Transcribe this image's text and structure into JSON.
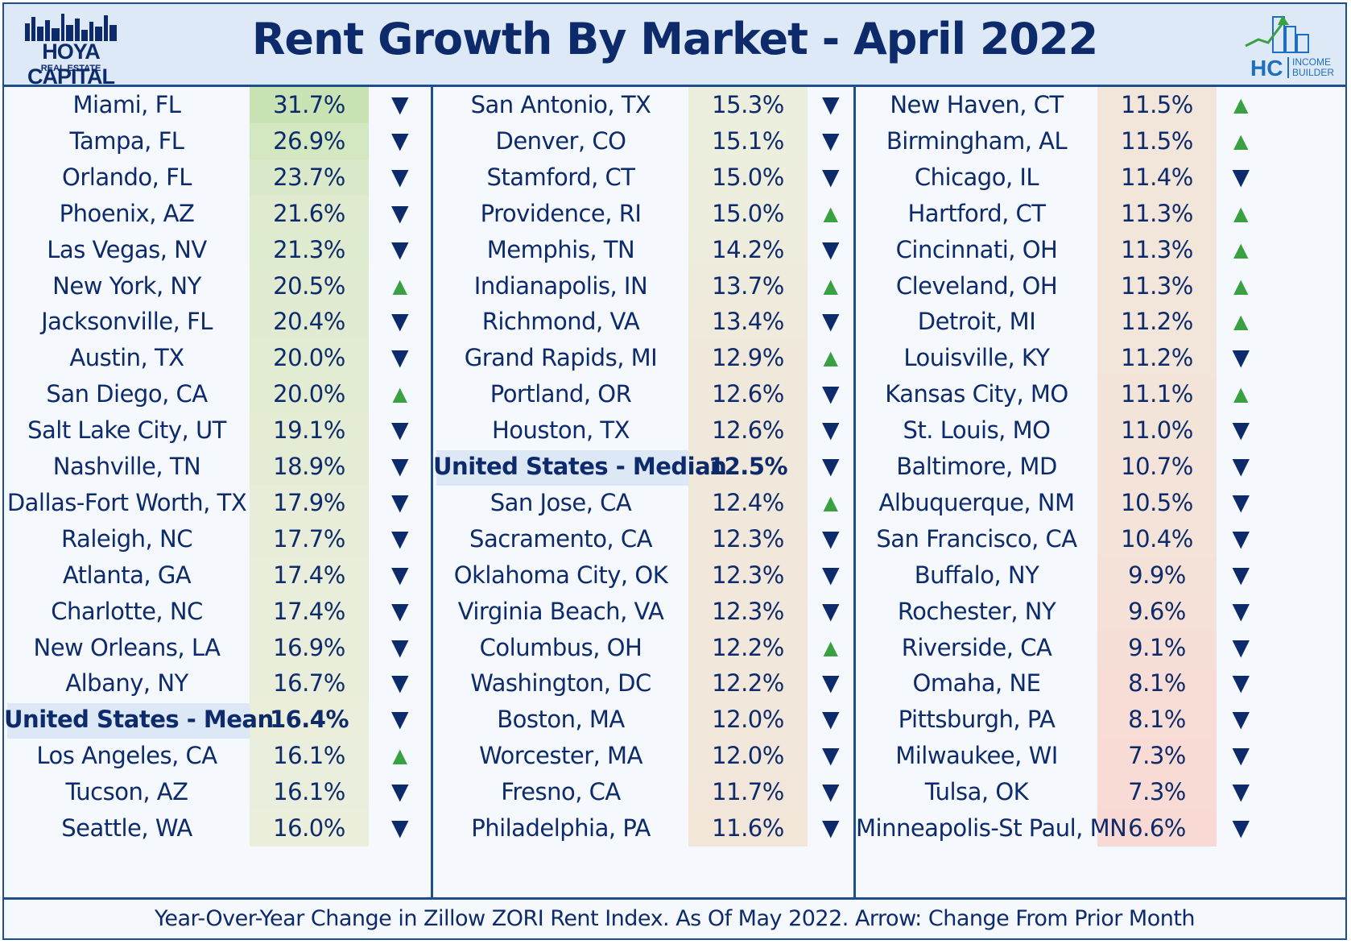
{
  "header": {
    "title": "Rent Growth By Market - April 2022",
    "logo_left_line1": "HOYA CAPITAL",
    "logo_left_line2": "REAL ESTATE",
    "logo_right_main": "HC",
    "logo_right_sub1": "INCOME",
    "logo_right_sub2": "BUILDER"
  },
  "footer": {
    "note": "Year-Over-Year Change in Zillow ZORI Rent Index. As Of May 2022. Arrow: Change From Prior Month"
  },
  "colors": {
    "border": "#1e4f8c",
    "text": "#0d2a6b",
    "arrow_up": "#3aa142",
    "arrow_down": "#0d2a6b",
    "highlight_bg": "#dce8f5",
    "high_value_bg": "#c9e3b4",
    "low_value_bg": "#f9d9d3"
  },
  "chart_data": {
    "type": "table",
    "title": "Rent Growth By Market - April 2022",
    "columns": [
      [
        {
          "city": "Miami, FL",
          "pct": "31.7%",
          "arrow": "down"
        },
        {
          "city": "Tampa, FL",
          "pct": "26.9%",
          "arrow": "down"
        },
        {
          "city": "Orlando, FL",
          "pct": "23.7%",
          "arrow": "down"
        },
        {
          "city": "Phoenix, AZ",
          "pct": "21.6%",
          "arrow": "down"
        },
        {
          "city": "Las Vegas, NV",
          "pct": "21.3%",
          "arrow": "down"
        },
        {
          "city": "New York, NY",
          "pct": "20.5%",
          "arrow": "up"
        },
        {
          "city": "Jacksonville, FL",
          "pct": "20.4%",
          "arrow": "down"
        },
        {
          "city": "Austin, TX",
          "pct": "20.0%",
          "arrow": "down"
        },
        {
          "city": "San Diego, CA",
          "pct": "20.0%",
          "arrow": "up"
        },
        {
          "city": "Salt Lake City, UT",
          "pct": "19.1%",
          "arrow": "down"
        },
        {
          "city": "Nashville, TN",
          "pct": "18.9%",
          "arrow": "down"
        },
        {
          "city": "Dallas-Fort Worth, TX",
          "pct": "17.9%",
          "arrow": "down"
        },
        {
          "city": "Raleigh, NC",
          "pct": "17.7%",
          "arrow": "down"
        },
        {
          "city": "Atlanta, GA",
          "pct": "17.4%",
          "arrow": "down"
        },
        {
          "city": "Charlotte, NC",
          "pct": "17.4%",
          "arrow": "down"
        },
        {
          "city": "New Orleans, LA",
          "pct": "16.9%",
          "arrow": "down"
        },
        {
          "city": "Albany, NY",
          "pct": "16.7%",
          "arrow": "down"
        },
        {
          "city": "United States - Mean",
          "pct": "16.4%",
          "arrow": "down",
          "highlight": true
        },
        {
          "city": "Los Angeles, CA",
          "pct": "16.1%",
          "arrow": "up"
        },
        {
          "city": "Tucson, AZ",
          "pct": "16.1%",
          "arrow": "down"
        },
        {
          "city": "Seattle, WA",
          "pct": "16.0%",
          "arrow": "down"
        }
      ],
      [
        {
          "city": "San Antonio, TX",
          "pct": "15.3%",
          "arrow": "down"
        },
        {
          "city": "Denver, CO",
          "pct": "15.1%",
          "arrow": "down"
        },
        {
          "city": "Stamford, CT",
          "pct": "15.0%",
          "arrow": "down"
        },
        {
          "city": "Providence, RI",
          "pct": "15.0%",
          "arrow": "up"
        },
        {
          "city": "Memphis, TN",
          "pct": "14.2%",
          "arrow": "down"
        },
        {
          "city": "Indianapolis, IN",
          "pct": "13.7%",
          "arrow": "up"
        },
        {
          "city": "Richmond, VA",
          "pct": "13.4%",
          "arrow": "down"
        },
        {
          "city": "Grand Rapids, MI",
          "pct": "12.9%",
          "arrow": "up"
        },
        {
          "city": "Portland, OR",
          "pct": "12.6%",
          "arrow": "down"
        },
        {
          "city": "Houston, TX",
          "pct": "12.6%",
          "arrow": "down"
        },
        {
          "city": "United States - Median",
          "pct": "12.5%",
          "arrow": "down",
          "highlight": true
        },
        {
          "city": "San Jose, CA",
          "pct": "12.4%",
          "arrow": "up"
        },
        {
          "city": "Sacramento, CA",
          "pct": "12.3%",
          "arrow": "down"
        },
        {
          "city": "Oklahoma City, OK",
          "pct": "12.3%",
          "arrow": "down"
        },
        {
          "city": "Virginia Beach, VA",
          "pct": "12.3%",
          "arrow": "down"
        },
        {
          "city": "Columbus, OH",
          "pct": "12.2%",
          "arrow": "up"
        },
        {
          "city": "Washington, DC",
          "pct": "12.2%",
          "arrow": "down"
        },
        {
          "city": "Boston, MA",
          "pct": "12.0%",
          "arrow": "down"
        },
        {
          "city": "Worcester, MA",
          "pct": "12.0%",
          "arrow": "down"
        },
        {
          "city": "Fresno, CA",
          "pct": "11.7%",
          "arrow": "down"
        },
        {
          "city": "Philadelphia, PA",
          "pct": "11.6%",
          "arrow": "down"
        }
      ],
      [
        {
          "city": "New Haven, CT",
          "pct": "11.5%",
          "arrow": "up"
        },
        {
          "city": "Birmingham, AL",
          "pct": "11.5%",
          "arrow": "up"
        },
        {
          "city": "Chicago, IL",
          "pct": "11.4%",
          "arrow": "down"
        },
        {
          "city": "Hartford, CT",
          "pct": "11.3%",
          "arrow": "up"
        },
        {
          "city": "Cincinnati, OH",
          "pct": "11.3%",
          "arrow": "up"
        },
        {
          "city": "Cleveland, OH",
          "pct": "11.3%",
          "arrow": "up"
        },
        {
          "city": "Detroit, MI",
          "pct": "11.2%",
          "arrow": "up"
        },
        {
          "city": "Louisville, KY",
          "pct": "11.2%",
          "arrow": "down"
        },
        {
          "city": "Kansas City, MO",
          "pct": "11.1%",
          "arrow": "up"
        },
        {
          "city": "St. Louis, MO",
          "pct": "11.0%",
          "arrow": "down"
        },
        {
          "city": "Baltimore, MD",
          "pct": "10.7%",
          "arrow": "down"
        },
        {
          "city": "Albuquerque, NM",
          "pct": "10.5%",
          "arrow": "down"
        },
        {
          "city": "San Francisco, CA",
          "pct": "10.4%",
          "arrow": "down"
        },
        {
          "city": "Buffalo, NY",
          "pct": "9.9%",
          "arrow": "down"
        },
        {
          "city": "Rochester, NY",
          "pct": "9.6%",
          "arrow": "down"
        },
        {
          "city": "Riverside, CA",
          "pct": "9.1%",
          "arrow": "down"
        },
        {
          "city": "Omaha, NE",
          "pct": "8.1%",
          "arrow": "down"
        },
        {
          "city": "Pittsburgh, PA",
          "pct": "8.1%",
          "arrow": "down"
        },
        {
          "city": "Milwaukee, WI",
          "pct": "7.3%",
          "arrow": "down"
        },
        {
          "city": "Tulsa, OK",
          "pct": "7.3%",
          "arrow": "down"
        },
        {
          "city": "Minneapolis-St Paul, MN",
          "pct": "6.6%",
          "arrow": "down"
        }
      ]
    ]
  }
}
